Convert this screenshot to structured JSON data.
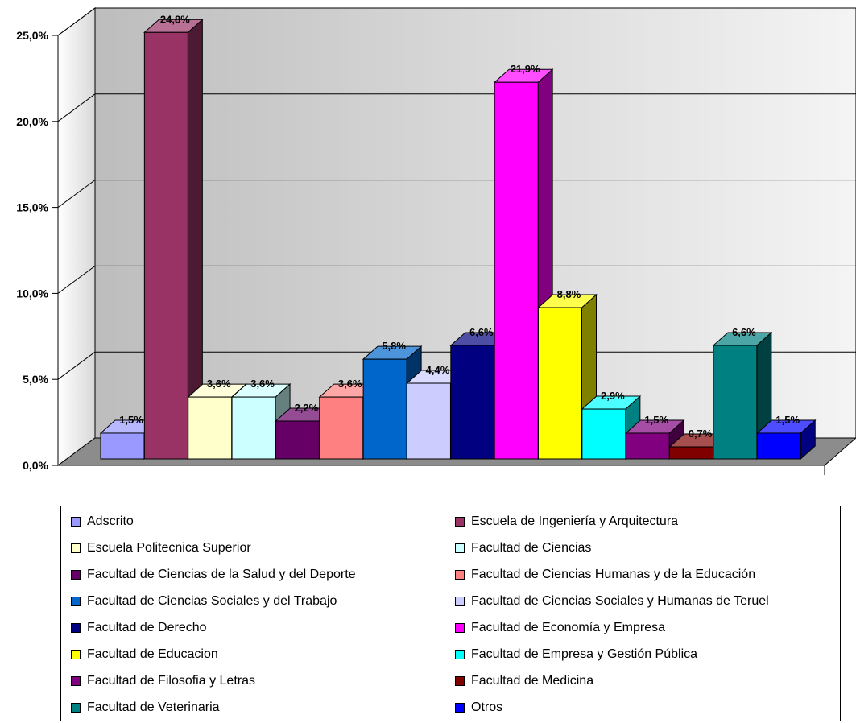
{
  "chart_data": {
    "type": "bar",
    "three_d": true,
    "title": "",
    "xlabel": "",
    "ylabel": "",
    "ylim": [
      0,
      25
    ],
    "y_ticks": [
      "0,0%",
      "5,0%",
      "10,0%",
      "15,0%",
      "20,0%",
      "25,0%"
    ],
    "y_tick_values": [
      0,
      5,
      10,
      15,
      20,
      25
    ],
    "grid": true,
    "legend_position": "bottom",
    "categories": [
      "Adscrito",
      "Escuela de Ingeniería y Arquitectura",
      "Escuela Politecnica Superior",
      "Facultad de Ciencias",
      "Facultad de Ciencias de la Salud y del Deporte",
      "Facultad de Ciencias Humanas y de la Educación",
      "Facultad de Ciencias Sociales y del Trabajo",
      "Facultad de Ciencias Sociales y Humanas de Teruel",
      "Facultad de Derecho",
      "Facultad de Economía y Empresa",
      "Facultad de Educacion",
      "Facultad de Empresa y Gestión Pública",
      "Facultad de Filosofia y Letras",
      "Facultad de Medicina",
      "Facultad de Veterinaria",
      "Otros"
    ],
    "values": [
      1.5,
      24.8,
      3.6,
      3.6,
      2.2,
      3.6,
      5.8,
      4.4,
      6.6,
      21.9,
      8.8,
      2.9,
      1.5,
      0.7,
      6.6,
      1.5
    ],
    "value_labels": [
      "1,5%",
      "24,8%",
      "3,6%",
      "3,6%",
      "2,2%",
      "3,6%",
      "5,8%",
      "4,4%",
      "6,6%",
      "21,9%",
      "8,8%",
      "2,9%",
      "1,5%",
      "0,7%",
      "6,6%",
      "1,5%"
    ],
    "colors": [
      "#9999FF",
      "#993366",
      "#FFFFCC",
      "#CCFFFF",
      "#660066",
      "#FF8080",
      "#0066CC",
      "#CCCCFF",
      "#000080",
      "#FF00FF",
      "#FFFF00",
      "#00FFFF",
      "#800080",
      "#800000",
      "#008080",
      "#0000FF"
    ]
  }
}
